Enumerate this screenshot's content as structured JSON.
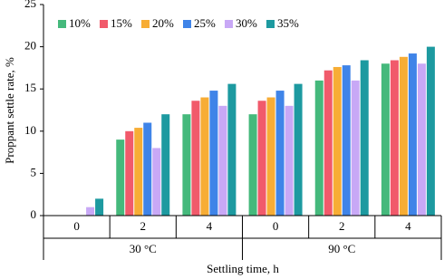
{
  "chart_data": {
    "type": "bar",
    "y_label": "Proppant settle rate, %",
    "x_label": "Settling time, h",
    "categories": [
      "0",
      "2",
      "4",
      "0",
      "2",
      "4"
    ],
    "category_groups": [
      "30 °C",
      "90 °C"
    ],
    "series": [
      {
        "name": "10%",
        "color": "#45b97c",
        "values": [
          0,
          9,
          12,
          12,
          16,
          18
        ]
      },
      {
        "name": "15%",
        "color": "#f15a6b",
        "values": [
          0,
          10,
          13.6,
          13.6,
          17.2,
          18.4
        ]
      },
      {
        "name": "20%",
        "color": "#f7ad35",
        "values": [
          0,
          10.4,
          14,
          14,
          17.6,
          18.8
        ]
      },
      {
        "name": "25%",
        "color": "#3f84e8",
        "values": [
          0,
          11,
          14.8,
          14.8,
          17.8,
          19.2
        ]
      },
      {
        "name": "30%",
        "color": "#c8a8f6",
        "values": [
          1,
          8,
          13,
          13,
          16,
          18
        ]
      },
      {
        "name": "35%",
        "color": "#1d9aa0",
        "values": [
          2,
          12,
          15.6,
          15.6,
          18.4,
          20
        ]
      }
    ],
    "ylim": [
      0,
      25
    ],
    "yticks": [
      0,
      5,
      10,
      15,
      20,
      25
    ]
  }
}
